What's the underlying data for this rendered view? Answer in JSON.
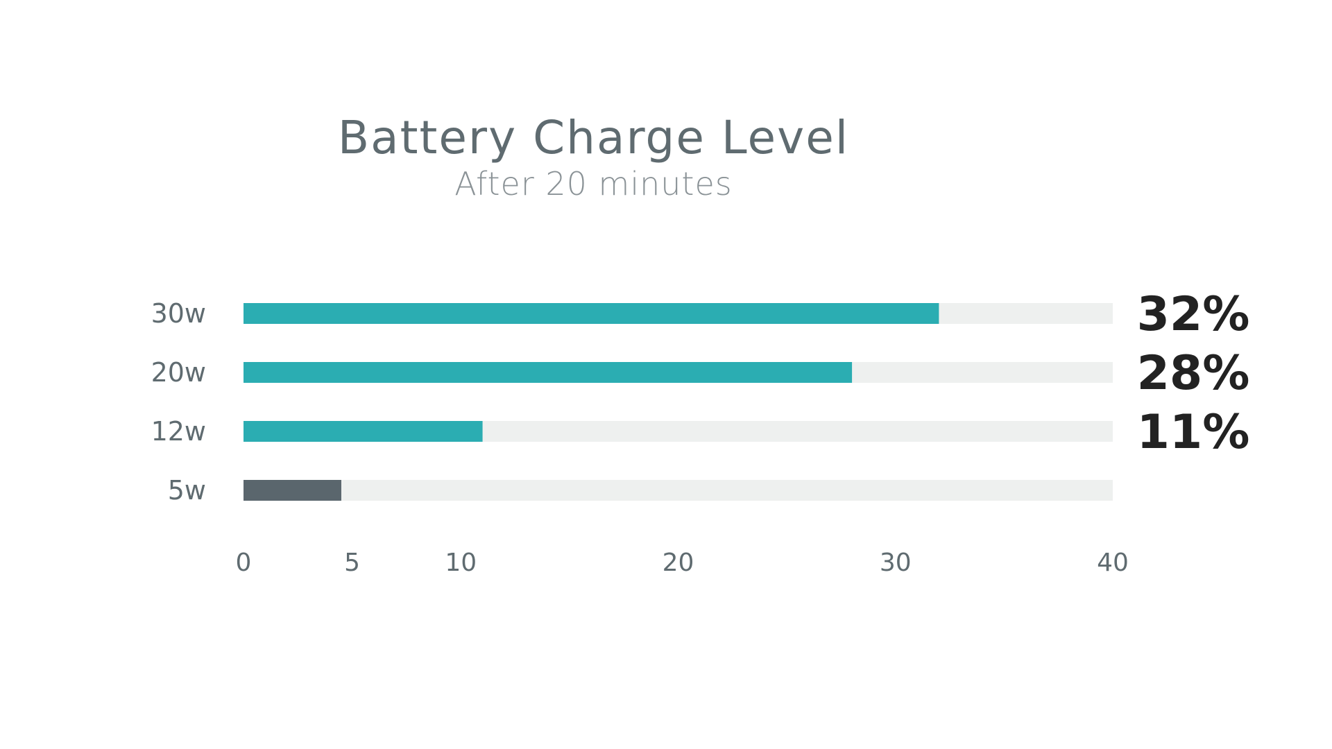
{
  "chart_data": {
    "type": "bar",
    "orientation": "horizontal",
    "title": "Battery Charge Level",
    "subtitle": "After 20 minutes",
    "categories": [
      "30w",
      "20w",
      "12w",
      "5w"
    ],
    "values": [
      32,
      28,
      11,
      4.5
    ],
    "value_labels": [
      "32%",
      "28%",
      "11%",
      ""
    ],
    "xlim": [
      0,
      40
    ],
    "x_ticks": [
      "0",
      "5",
      "10",
      "20",
      "30",
      "40"
    ],
    "grid": false,
    "legend": "none",
    "colors": {
      "bar": "#2badb2",
      "highlight_bar": "#5a666d",
      "track": "#eef0ef"
    }
  }
}
